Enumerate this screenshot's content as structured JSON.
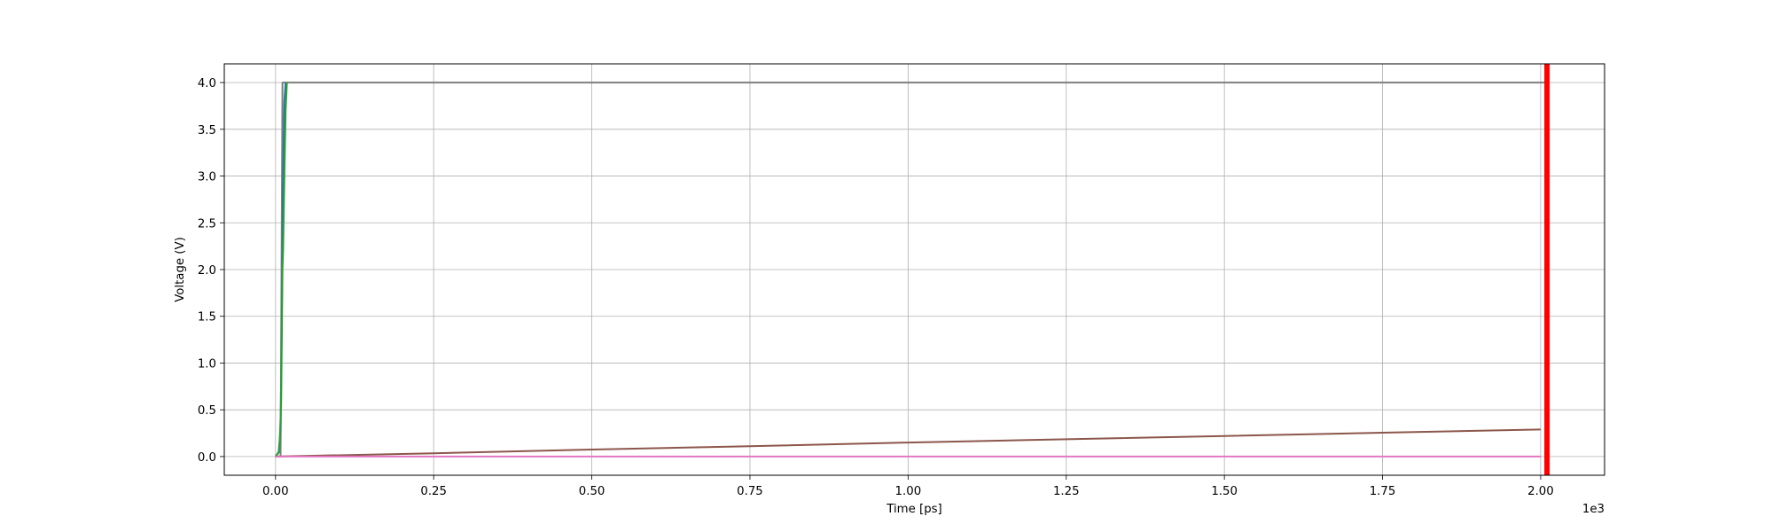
{
  "chart_data": {
    "type": "line",
    "title": "",
    "xlabel": "Time [ps]",
    "ylabel": "Voltage (V)",
    "x_offset_label": "1e3",
    "xlim": [
      -0.081,
      2.101
    ],
    "ylim": [
      -0.2,
      4.2
    ],
    "xticks": [
      0.0,
      0.25,
      0.5,
      0.75,
      1.0,
      1.25,
      1.5,
      1.75,
      2.0
    ],
    "xtick_labels": [
      "0.00",
      "0.25",
      "0.50",
      "0.75",
      "1.00",
      "1.25",
      "1.50",
      "1.75",
      "2.00"
    ],
    "yticks": [
      0.0,
      0.5,
      1.0,
      1.5,
      2.0,
      2.5,
      3.0,
      3.5,
      4.0
    ],
    "ytick_labels": [
      "0.0",
      "0.5",
      "1.0",
      "1.5",
      "2.0",
      "2.5",
      "3.0",
      "3.5",
      "4.0"
    ],
    "grid": true,
    "legend": "none",
    "series": [
      {
        "color": "#7f7f7f",
        "x": [
          0.0,
          0.008,
          0.011,
          2.01
        ],
        "y": [
          0.0,
          0.0,
          4.0,
          4.0
        ]
      },
      {
        "color": "#1f77b4",
        "x": [
          0.0,
          0.005,
          0.008,
          0.01,
          0.012,
          0.014,
          0.016
        ],
        "y": [
          0.0,
          0.05,
          0.3,
          1.5,
          3.0,
          3.8,
          4.0
        ]
      },
      {
        "color": "#2ca02c",
        "x": [
          0.0,
          0.006,
          0.009,
          0.011,
          0.012,
          0.014,
          0.016,
          0.018
        ],
        "y": [
          0.0,
          0.05,
          0.6,
          2.0,
          2.2,
          3.0,
          3.7,
          4.0
        ]
      },
      {
        "color": "#8c564b",
        "x": [
          0.0,
          0.25,
          0.5,
          0.75,
          1.0,
          1.25,
          1.5,
          1.75,
          2.0
        ],
        "y": [
          0.0,
          0.035,
          0.075,
          0.11,
          0.15,
          0.185,
          0.22,
          0.255,
          0.29
        ]
      },
      {
        "color": "#e377c2",
        "x": [
          0.0,
          2.0
        ],
        "y": [
          0.0,
          0.0
        ]
      }
    ],
    "vline": {
      "x": 2.01,
      "color": "#ff0000"
    }
  }
}
